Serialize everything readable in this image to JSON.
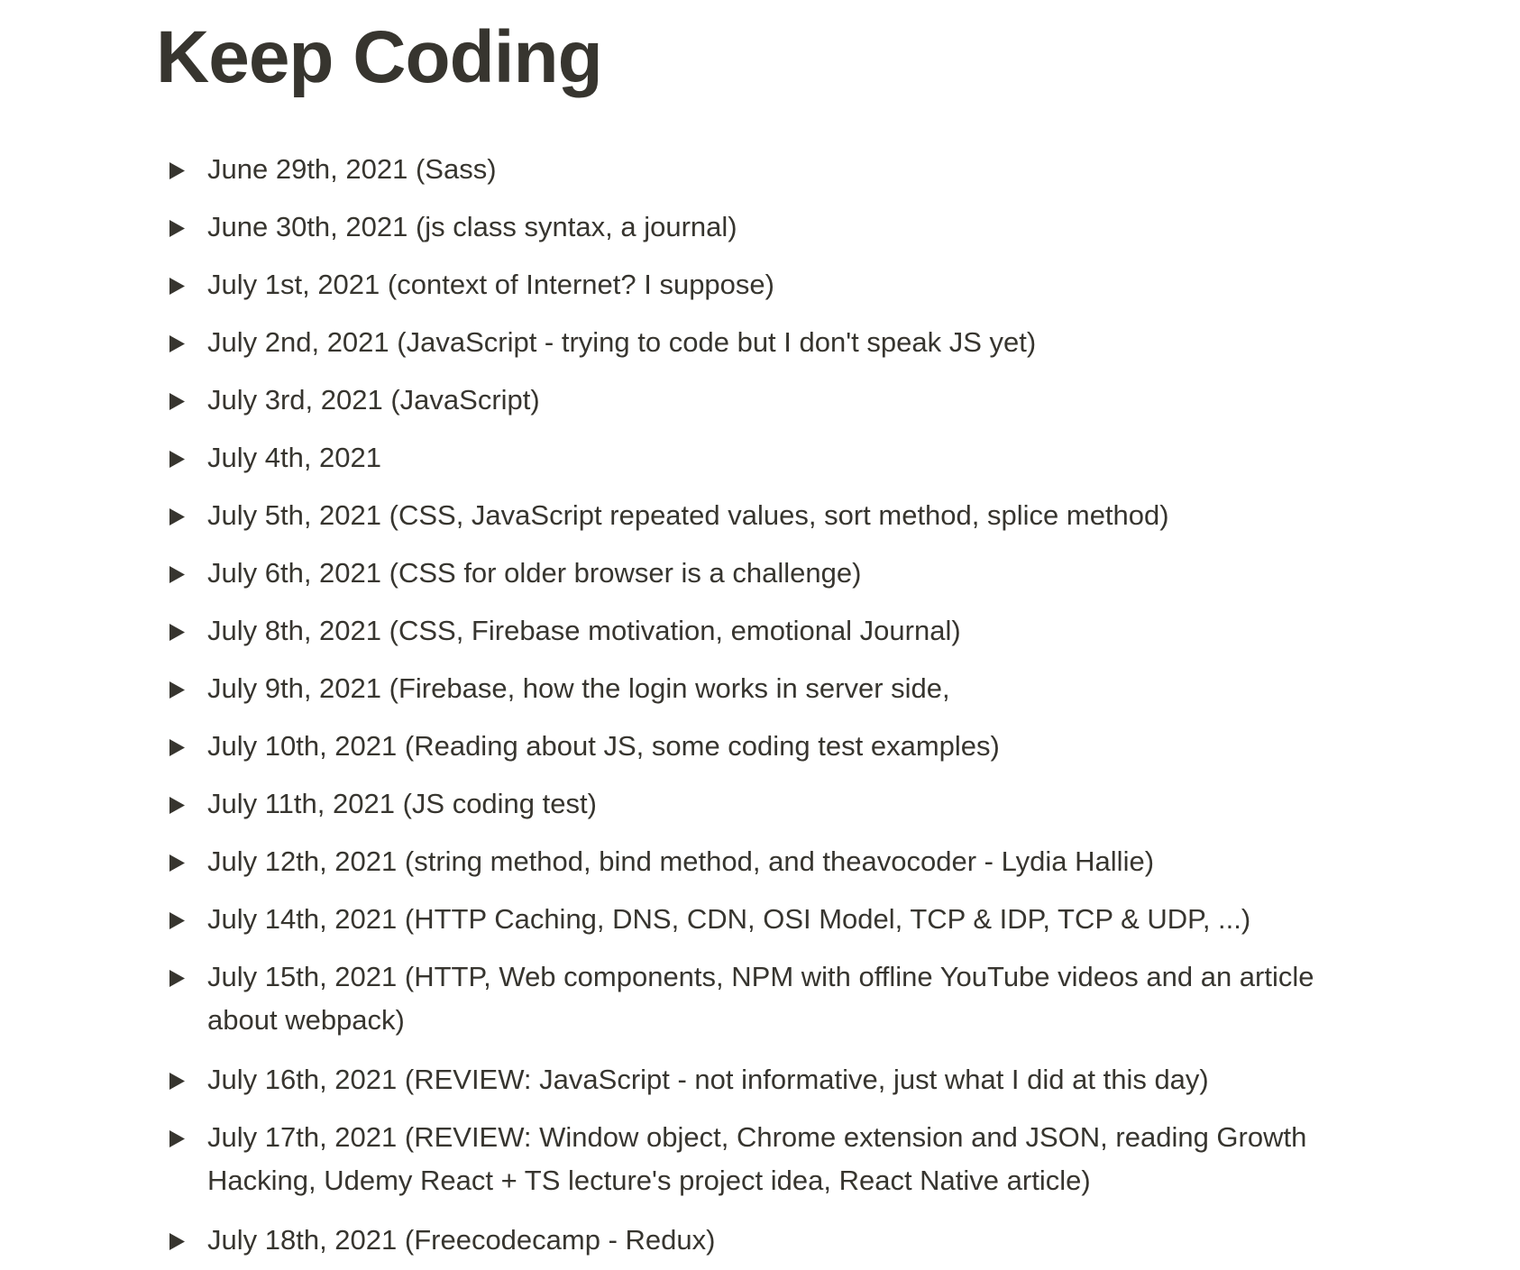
{
  "page": {
    "title": "Keep Coding"
  },
  "toggle_icon": "triangle-right-icon",
  "colors": {
    "text": "#37352f",
    "background": "#ffffff"
  },
  "entries": [
    {
      "label": "June 29th, 2021 (Sass)"
    },
    {
      "label": "June 30th, 2021 (js class syntax, a journal)"
    },
    {
      "label": "July 1st, 2021 (context of Internet? I suppose)"
    },
    {
      "label": "July 2nd, 2021 (JavaScript - trying to code but I don't speak JS yet)"
    },
    {
      "label": "July 3rd, 2021 (JavaScript)"
    },
    {
      "label": "July 4th, 2021"
    },
    {
      "label": "July 5th, 2021 (CSS, JavaScript repeated values, sort method, splice method)"
    },
    {
      "label": "July 6th, 2021 (CSS for older browser is a challenge)"
    },
    {
      "label": "July 8th, 2021 (CSS, Firebase motivation, emotional Journal)"
    },
    {
      "label": "July 9th, 2021 (Firebase, how the login works in server side,"
    },
    {
      "label": "July 10th, 2021 (Reading about JS, some coding test examples)"
    },
    {
      "label": "July 11th, 2021 (JS coding test)"
    },
    {
      "label": "July 12th, 2021 (string method, bind method, and theavocoder - Lydia Hallie)"
    },
    {
      "label": "July 14th, 2021 (HTTP Caching, DNS, CDN, OSI Model, TCP & IDP, TCP & UDP, ...)"
    },
    {
      "label": "July 15th, 2021 (HTTP, Web components, NPM with offline YouTube videos and an article about webpack)"
    },
    {
      "label": "July 16th, 2021 (REVIEW: JavaScript - not informative, just what I did at this day)"
    },
    {
      "label": "July 17th, 2021 (REVIEW: Window object, Chrome extension and JSON, reading Growth Hacking, Udemy React + TS lecture's project idea, React Native article)"
    },
    {
      "label": "July 18th, 2021 (Freecodecamp - Redux)"
    }
  ]
}
